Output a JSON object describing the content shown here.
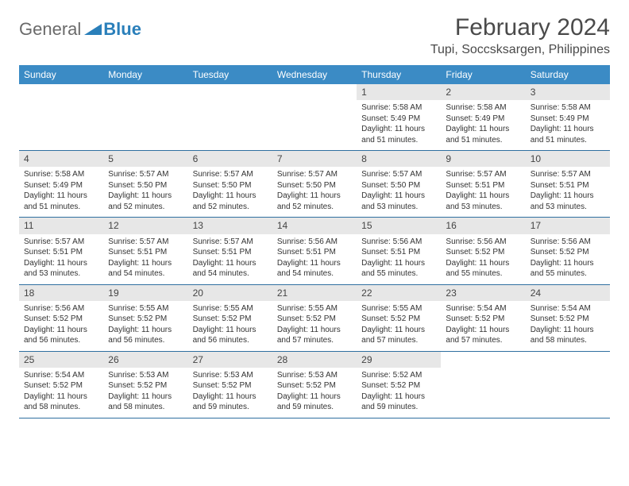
{
  "logo": {
    "text1": "General",
    "text2": "Blue"
  },
  "title": "February 2024",
  "subtitle": "Tupi, Soccsksargen, Philippines",
  "colors": {
    "header_bg": "#3b8bc5",
    "header_text": "#ffffff",
    "daynum_band": "#e7e7e7",
    "rule": "#2f6fa0",
    "logo_accent": "#2a7fba"
  },
  "daysOfWeek": [
    "Sunday",
    "Monday",
    "Tuesday",
    "Wednesday",
    "Thursday",
    "Friday",
    "Saturday"
  ],
  "weeks": [
    [
      {
        "n": "",
        "sr": "",
        "ss": "",
        "dl": ""
      },
      {
        "n": "",
        "sr": "",
        "ss": "",
        "dl": ""
      },
      {
        "n": "",
        "sr": "",
        "ss": "",
        "dl": ""
      },
      {
        "n": "",
        "sr": "",
        "ss": "",
        "dl": ""
      },
      {
        "n": "1",
        "sr": "Sunrise: 5:58 AM",
        "ss": "Sunset: 5:49 PM",
        "dl": "Daylight: 11 hours and 51 minutes."
      },
      {
        "n": "2",
        "sr": "Sunrise: 5:58 AM",
        "ss": "Sunset: 5:49 PM",
        "dl": "Daylight: 11 hours and 51 minutes."
      },
      {
        "n": "3",
        "sr": "Sunrise: 5:58 AM",
        "ss": "Sunset: 5:49 PM",
        "dl": "Daylight: 11 hours and 51 minutes."
      }
    ],
    [
      {
        "n": "4",
        "sr": "Sunrise: 5:58 AM",
        "ss": "Sunset: 5:49 PM",
        "dl": "Daylight: 11 hours and 51 minutes."
      },
      {
        "n": "5",
        "sr": "Sunrise: 5:57 AM",
        "ss": "Sunset: 5:50 PM",
        "dl": "Daylight: 11 hours and 52 minutes."
      },
      {
        "n": "6",
        "sr": "Sunrise: 5:57 AM",
        "ss": "Sunset: 5:50 PM",
        "dl": "Daylight: 11 hours and 52 minutes."
      },
      {
        "n": "7",
        "sr": "Sunrise: 5:57 AM",
        "ss": "Sunset: 5:50 PM",
        "dl": "Daylight: 11 hours and 52 minutes."
      },
      {
        "n": "8",
        "sr": "Sunrise: 5:57 AM",
        "ss": "Sunset: 5:50 PM",
        "dl": "Daylight: 11 hours and 53 minutes."
      },
      {
        "n": "9",
        "sr": "Sunrise: 5:57 AM",
        "ss": "Sunset: 5:51 PM",
        "dl": "Daylight: 11 hours and 53 minutes."
      },
      {
        "n": "10",
        "sr": "Sunrise: 5:57 AM",
        "ss": "Sunset: 5:51 PM",
        "dl": "Daylight: 11 hours and 53 minutes."
      }
    ],
    [
      {
        "n": "11",
        "sr": "Sunrise: 5:57 AM",
        "ss": "Sunset: 5:51 PM",
        "dl": "Daylight: 11 hours and 53 minutes."
      },
      {
        "n": "12",
        "sr": "Sunrise: 5:57 AM",
        "ss": "Sunset: 5:51 PM",
        "dl": "Daylight: 11 hours and 54 minutes."
      },
      {
        "n": "13",
        "sr": "Sunrise: 5:57 AM",
        "ss": "Sunset: 5:51 PM",
        "dl": "Daylight: 11 hours and 54 minutes."
      },
      {
        "n": "14",
        "sr": "Sunrise: 5:56 AM",
        "ss": "Sunset: 5:51 PM",
        "dl": "Daylight: 11 hours and 54 minutes."
      },
      {
        "n": "15",
        "sr": "Sunrise: 5:56 AM",
        "ss": "Sunset: 5:51 PM",
        "dl": "Daylight: 11 hours and 55 minutes."
      },
      {
        "n": "16",
        "sr": "Sunrise: 5:56 AM",
        "ss": "Sunset: 5:52 PM",
        "dl": "Daylight: 11 hours and 55 minutes."
      },
      {
        "n": "17",
        "sr": "Sunrise: 5:56 AM",
        "ss": "Sunset: 5:52 PM",
        "dl": "Daylight: 11 hours and 55 minutes."
      }
    ],
    [
      {
        "n": "18",
        "sr": "Sunrise: 5:56 AM",
        "ss": "Sunset: 5:52 PM",
        "dl": "Daylight: 11 hours and 56 minutes."
      },
      {
        "n": "19",
        "sr": "Sunrise: 5:55 AM",
        "ss": "Sunset: 5:52 PM",
        "dl": "Daylight: 11 hours and 56 minutes."
      },
      {
        "n": "20",
        "sr": "Sunrise: 5:55 AM",
        "ss": "Sunset: 5:52 PM",
        "dl": "Daylight: 11 hours and 56 minutes."
      },
      {
        "n": "21",
        "sr": "Sunrise: 5:55 AM",
        "ss": "Sunset: 5:52 PM",
        "dl": "Daylight: 11 hours and 57 minutes."
      },
      {
        "n": "22",
        "sr": "Sunrise: 5:55 AM",
        "ss": "Sunset: 5:52 PM",
        "dl": "Daylight: 11 hours and 57 minutes."
      },
      {
        "n": "23",
        "sr": "Sunrise: 5:54 AM",
        "ss": "Sunset: 5:52 PM",
        "dl": "Daylight: 11 hours and 57 minutes."
      },
      {
        "n": "24",
        "sr": "Sunrise: 5:54 AM",
        "ss": "Sunset: 5:52 PM",
        "dl": "Daylight: 11 hours and 58 minutes."
      }
    ],
    [
      {
        "n": "25",
        "sr": "Sunrise: 5:54 AM",
        "ss": "Sunset: 5:52 PM",
        "dl": "Daylight: 11 hours and 58 minutes."
      },
      {
        "n": "26",
        "sr": "Sunrise: 5:53 AM",
        "ss": "Sunset: 5:52 PM",
        "dl": "Daylight: 11 hours and 58 minutes."
      },
      {
        "n": "27",
        "sr": "Sunrise: 5:53 AM",
        "ss": "Sunset: 5:52 PM",
        "dl": "Daylight: 11 hours and 59 minutes."
      },
      {
        "n": "28",
        "sr": "Sunrise: 5:53 AM",
        "ss": "Sunset: 5:52 PM",
        "dl": "Daylight: 11 hours and 59 minutes."
      },
      {
        "n": "29",
        "sr": "Sunrise: 5:52 AM",
        "ss": "Sunset: 5:52 PM",
        "dl": "Daylight: 11 hours and 59 minutes."
      },
      {
        "n": "",
        "sr": "",
        "ss": "",
        "dl": ""
      },
      {
        "n": "",
        "sr": "",
        "ss": "",
        "dl": ""
      }
    ]
  ]
}
